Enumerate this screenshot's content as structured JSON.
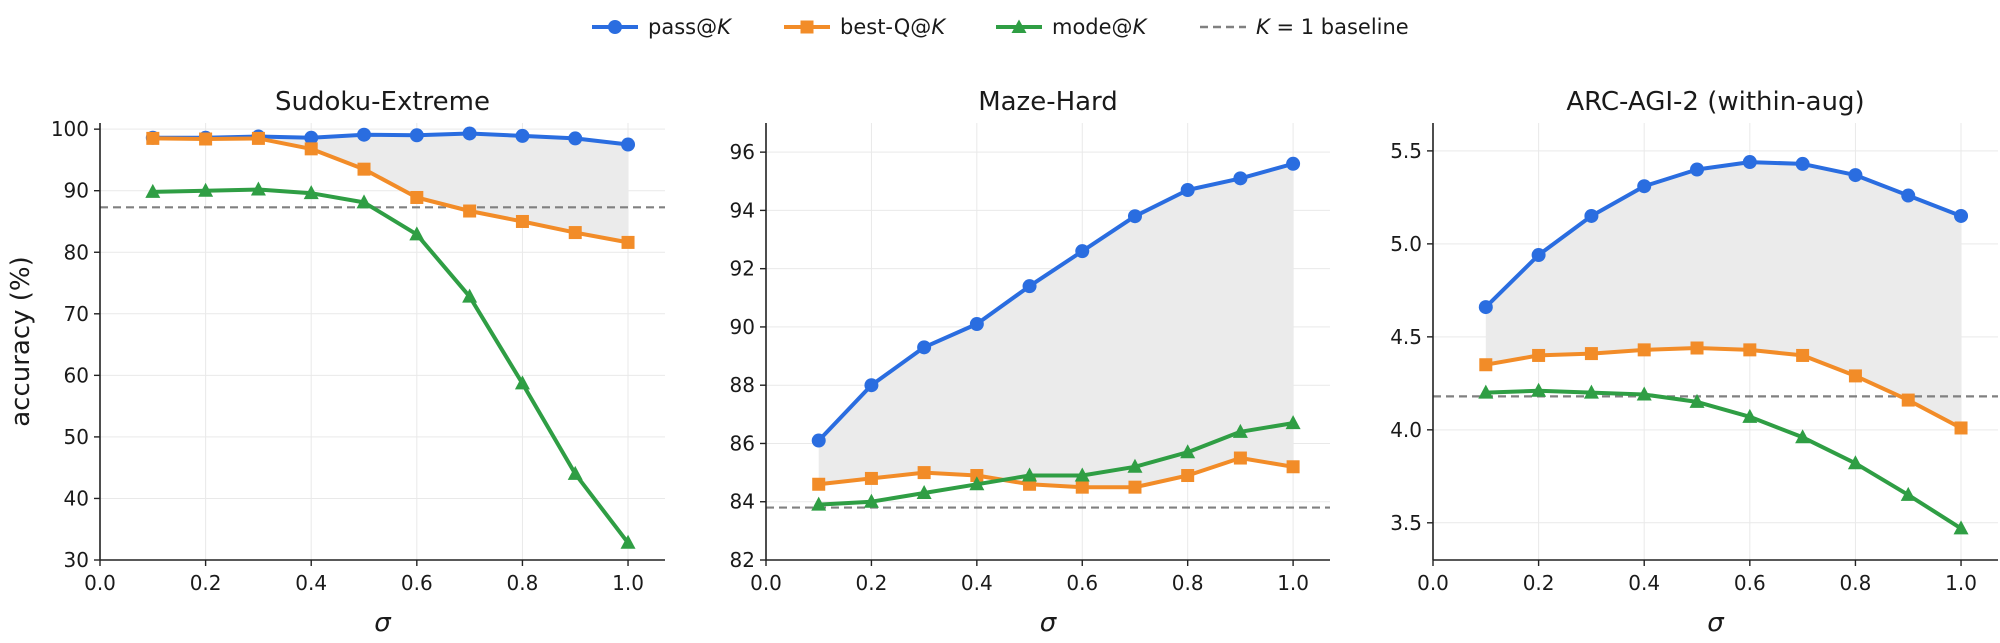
{
  "colors": {
    "pass": "#2a6de0",
    "bestq": "#f28c28",
    "mode": "#2f9e44",
    "baseline": "#808080",
    "band": "#ebebeb"
  },
  "legend": {
    "pass": {
      "prefix": "pass@",
      "k": "K"
    },
    "bestq": {
      "prefix": "best-Q@",
      "k": "K"
    },
    "mode": {
      "prefix": "mode@",
      "k": "K"
    },
    "baseline": {
      "k": "K",
      "suffix": " = 1 baseline"
    }
  },
  "chart_data": [
    {
      "type": "line",
      "title": "Sudoku-Extreme",
      "xlabel": "σ",
      "ylabel": "accuracy (%)",
      "xlim": [
        0.0,
        1.07
      ],
      "ylim": [
        30,
        101
      ],
      "xticks": [
        0.0,
        0.2,
        0.4,
        0.6,
        0.8,
        1.0
      ],
      "xtick_labels": [
        "0.0",
        "0.2",
        "0.4",
        "0.6",
        "0.8",
        "1.0"
      ],
      "yticks": [
        30,
        40,
        50,
        60,
        70,
        80,
        90,
        100
      ],
      "ytick_labels": [
        "30",
        "40",
        "50",
        "60",
        "70",
        "80",
        "90",
        "100"
      ],
      "grid": true,
      "x": [
        0.1,
        0.2,
        0.3,
        0.4,
        0.5,
        0.6,
        0.7,
        0.8,
        0.9,
        1.0
      ],
      "series": [
        {
          "name": "pass@K",
          "values": [
            98.6,
            98.6,
            98.8,
            98.6,
            99.1,
            99.0,
            99.3,
            98.9,
            98.5,
            97.5
          ]
        },
        {
          "name": "best-Q@K",
          "values": [
            98.5,
            98.4,
            98.5,
            96.8,
            93.5,
            88.9,
            86.7,
            85.0,
            83.2,
            81.6
          ]
        },
        {
          "name": "mode@K",
          "values": [
            89.8,
            90.0,
            90.2,
            89.6,
            88.1,
            82.9,
            72.8,
            58.7,
            44.0,
            32.8
          ]
        }
      ],
      "baseline": 87.3
    },
    {
      "type": "line",
      "title": "Maze-Hard",
      "xlabel": "σ",
      "ylabel": "",
      "xlim": [
        0.0,
        1.07
      ],
      "ylim": [
        82,
        97
      ],
      "xticks": [
        0.0,
        0.2,
        0.4,
        0.6,
        0.8,
        1.0
      ],
      "xtick_labels": [
        "0.0",
        "0.2",
        "0.4",
        "0.6",
        "0.8",
        "1.0"
      ],
      "yticks": [
        82,
        84,
        86,
        88,
        90,
        92,
        94,
        96
      ],
      "ytick_labels": [
        "82",
        "84",
        "86",
        "88",
        "90",
        "92",
        "94",
        "96"
      ],
      "grid": true,
      "x": [
        0.1,
        0.2,
        0.3,
        0.4,
        0.5,
        0.6,
        0.7,
        0.8,
        0.9,
        1.0
      ],
      "series": [
        {
          "name": "pass@K",
          "values": [
            86.1,
            88.0,
            89.3,
            90.1,
            91.4,
            92.6,
            93.8,
            94.7,
            95.1,
            95.6
          ]
        },
        {
          "name": "best-Q@K",
          "values": [
            84.6,
            84.8,
            85.0,
            84.9,
            84.6,
            84.5,
            84.5,
            84.9,
            85.5,
            85.2
          ]
        },
        {
          "name": "mode@K",
          "values": [
            83.9,
            84.0,
            84.3,
            84.6,
            84.9,
            84.9,
            85.2,
            85.7,
            86.4,
            86.7
          ]
        }
      ],
      "baseline": 83.8
    },
    {
      "type": "line",
      "title": "ARC-AGI-2 (within-aug)",
      "xlabel": "σ",
      "ylabel": "",
      "xlim": [
        0.0,
        1.07
      ],
      "ylim": [
        3.3,
        5.65
      ],
      "xticks": [
        0.0,
        0.2,
        0.4,
        0.6,
        0.8,
        1.0
      ],
      "xtick_labels": [
        "0.0",
        "0.2",
        "0.4",
        "0.6",
        "0.8",
        "1.0"
      ],
      "yticks": [
        3.5,
        4.0,
        4.5,
        5.0,
        5.5
      ],
      "ytick_labels": [
        "3.5",
        "4.0",
        "4.5",
        "5.0",
        "5.5"
      ],
      "grid": true,
      "x": [
        0.1,
        0.2,
        0.3,
        0.4,
        0.5,
        0.6,
        0.7,
        0.8,
        0.9,
        1.0
      ],
      "series": [
        {
          "name": "pass@K",
          "values": [
            4.66,
            4.94,
            5.15,
            5.31,
            5.4,
            5.44,
            5.43,
            5.37,
            5.26,
            5.15
          ]
        },
        {
          "name": "best-Q@K",
          "values": [
            4.35,
            4.4,
            4.41,
            4.43,
            4.44,
            4.43,
            4.4,
            4.29,
            4.16,
            4.01
          ]
        },
        {
          "name": "mode@K",
          "values": [
            4.2,
            4.21,
            4.2,
            4.19,
            4.15,
            4.07,
            3.96,
            3.82,
            3.65,
            3.47
          ]
        }
      ],
      "baseline": 4.18
    }
  ]
}
